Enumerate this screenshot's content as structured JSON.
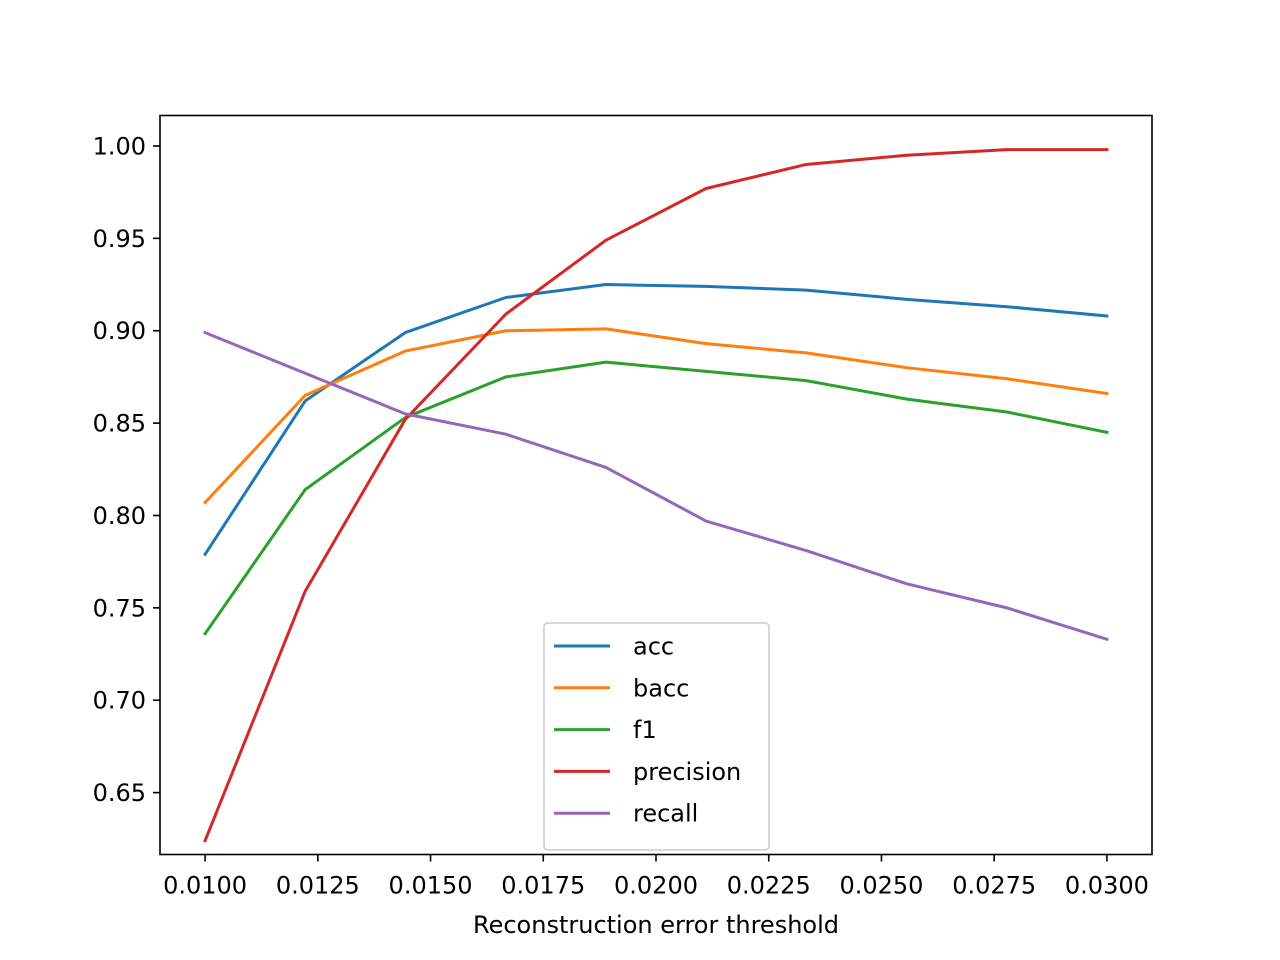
{
  "chart_data": {
    "type": "line",
    "title": "",
    "xlabel": "Reconstruction error threshold",
    "ylabel": "",
    "xlim": [
      0.009,
      0.031
    ],
    "ylim": [
      0.6165,
      1.0165
    ],
    "x_ticks": [
      0.01,
      0.0125,
      0.015,
      0.0175,
      0.02,
      0.0225,
      0.025,
      0.0275,
      0.03
    ],
    "x_tick_labels": [
      "0.0100",
      "0.0125",
      "0.0150",
      "0.0175",
      "0.0200",
      "0.0225",
      "0.0250",
      "0.0275",
      "0.0300"
    ],
    "y_ticks": [
      0.65,
      0.7,
      0.75,
      0.8,
      0.85,
      0.9,
      0.95,
      1.0
    ],
    "y_tick_labels": [
      "0.65",
      "0.70",
      "0.75",
      "0.80",
      "0.85",
      "0.90",
      "0.95",
      "1.00"
    ],
    "grid": false,
    "legend_position": "bottom-center",
    "x": [
      0.01,
      0.01222,
      0.01444,
      0.01667,
      0.01889,
      0.02111,
      0.02333,
      0.02556,
      0.02778,
      0.03
    ],
    "series": [
      {
        "name": "acc",
        "color": "#1f77b4",
        "values": [
          0.779,
          0.862,
          0.899,
          0.918,
          0.925,
          0.924,
          0.922,
          0.917,
          0.913,
          0.908
        ]
      },
      {
        "name": "bacc",
        "color": "#ff7f0e",
        "values": [
          0.807,
          0.865,
          0.889,
          0.9,
          0.901,
          0.893,
          0.888,
          0.88,
          0.874,
          0.866
        ]
      },
      {
        "name": "f1",
        "color": "#2ca02c",
        "values": [
          0.736,
          0.814,
          0.853,
          0.875,
          0.883,
          0.878,
          0.873,
          0.863,
          0.856,
          0.845
        ]
      },
      {
        "name": "precision",
        "color": "#d62728",
        "values": [
          0.624,
          0.759,
          0.852,
          0.909,
          0.949,
          0.977,
          0.99,
          0.995,
          0.998,
          0.998
        ]
      },
      {
        "name": "recall",
        "color": "#9467bd",
        "values": [
          0.899,
          0.877,
          0.855,
          0.844,
          0.826,
          0.797,
          0.781,
          0.763,
          0.75,
          0.733
        ]
      }
    ]
  }
}
